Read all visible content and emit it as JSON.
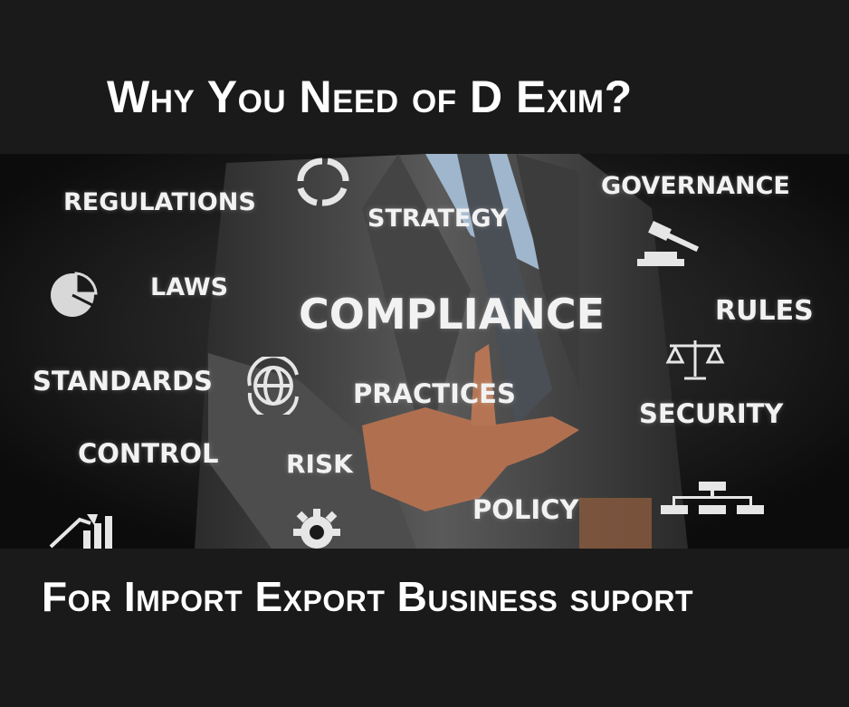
{
  "title": "Why You Need of D Exim?",
  "subtitle": "For Import Export Business suport",
  "words": {
    "regulations": "REGULATIONS",
    "strategy": "STRATEGY",
    "governance": "GOVERNANCE",
    "laws": "LAWS",
    "compliance": "COMPLIANCE",
    "rules": "RULES",
    "standards": "STANDARDS",
    "practices": "PRACTICES",
    "security": "SECURITY",
    "control": "CONTROL",
    "risk": "RISK",
    "policy": "POLICY"
  },
  "colors": {
    "background": "#1a1a1a",
    "text": "#ffffff",
    "suit": "#3a3a3a"
  }
}
